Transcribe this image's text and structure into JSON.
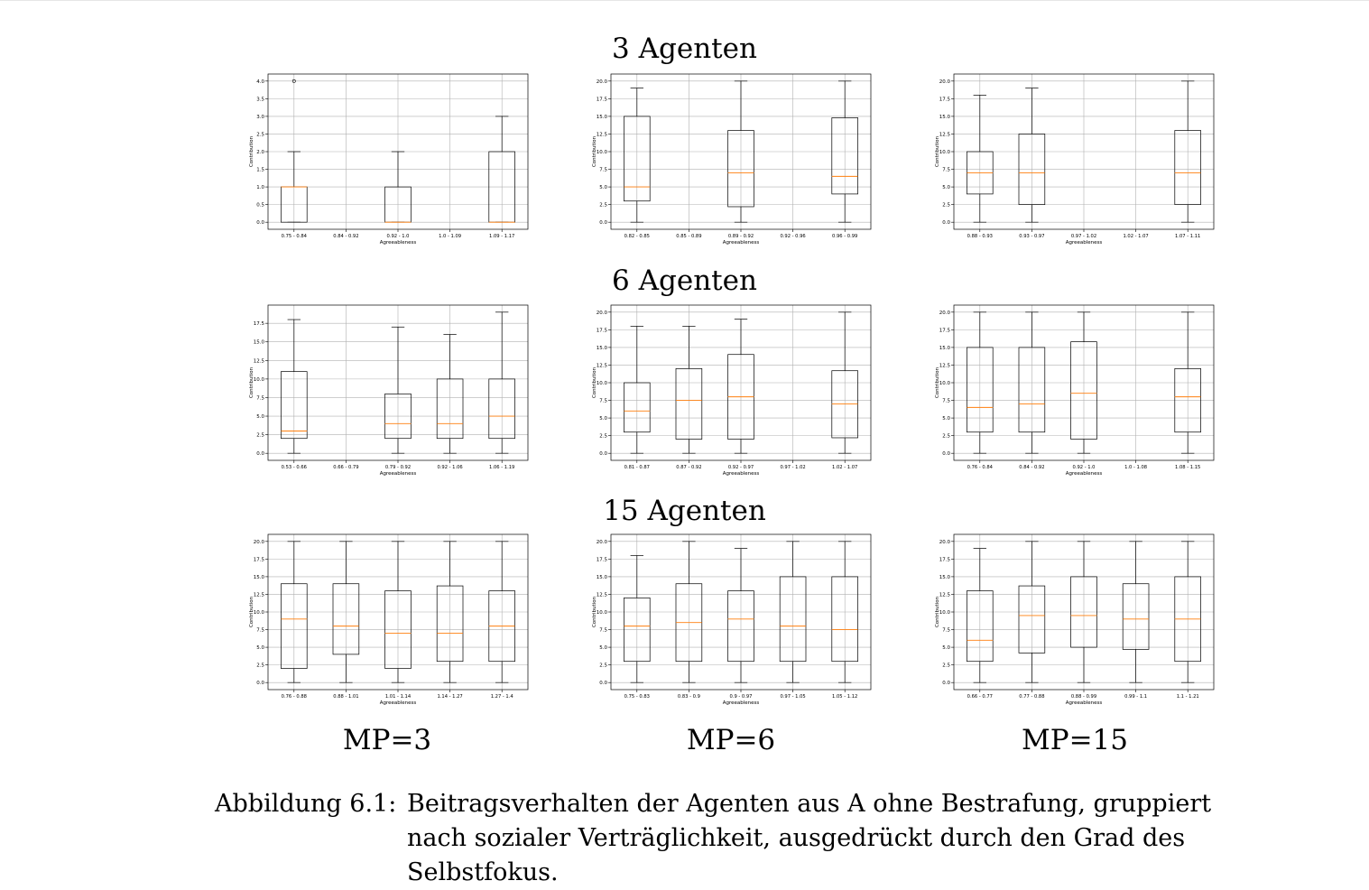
{
  "row_titles": [
    "3 Agenten",
    "6 Agenten",
    "15 Agenten"
  ],
  "column_labels": [
    "MP=3",
    "MP=6",
    "MP=15"
  ],
  "caption": {
    "label": "Abbildung 6.1:",
    "text": "Beitragsverhalten der Agenten aus A ohne Bestrafung, gruppiert nach sozialer Verträglichkeit, ausgedrückt durch den Grad des Selbstfokus."
  },
  "colors": {
    "median": "#ff7f0e",
    "box": "#000000",
    "grid": "#b0b0b0"
  },
  "chart_data": [
    {
      "type": "box",
      "row": 0,
      "col": 0,
      "xlabel": "Agreeableness",
      "ylabel": "Contribution",
      "ylim": [
        0,
        4
      ],
      "yticks": [
        "0.0",
        "0.5",
        "1.0",
        "1.5",
        "2.0",
        "2.5",
        "3.0",
        "3.5",
        "4.0"
      ],
      "grid": true,
      "categories": [
        "0.75 - 0.84",
        "0.84 - 0.92",
        "0.92 - 1.0",
        "1.0 - 1.09",
        "1.09 - 1.17"
      ],
      "boxes": [
        {
          "whislo": 0,
          "q1": 0,
          "med": 1,
          "q3": 1,
          "whishi": 2,
          "fliers": [
            4
          ]
        },
        null,
        {
          "whislo": 0,
          "q1": 0,
          "med": 0,
          "q3": 1,
          "whishi": 2,
          "fliers": []
        },
        null,
        {
          "whislo": 0,
          "q1": 0,
          "med": 0,
          "q3": 2,
          "whishi": 3,
          "fliers": []
        }
      ]
    },
    {
      "type": "box",
      "row": 0,
      "col": 1,
      "xlabel": "Agreeableness",
      "ylabel": "Contribution",
      "ylim": [
        0,
        20
      ],
      "yticks": [
        "0.0",
        "2.5",
        "5.0",
        "7.5",
        "10.0",
        "12.5",
        "15.0",
        "17.5",
        "20.0"
      ],
      "grid": true,
      "categories": [
        "0.82 - 0.85",
        "0.85 - 0.89",
        "0.89 - 0.92",
        "0.92 - 0.96",
        "0.96 - 0.99"
      ],
      "boxes": [
        {
          "whislo": 0,
          "q1": 3,
          "med": 5,
          "q3": 15,
          "whishi": 19,
          "fliers": []
        },
        null,
        {
          "whislo": 0,
          "q1": 2.2,
          "med": 7,
          "q3": 13,
          "whishi": 20,
          "fliers": []
        },
        null,
        {
          "whislo": 0,
          "q1": 4,
          "med": 6.5,
          "q3": 14.8,
          "whishi": 20,
          "fliers": []
        }
      ]
    },
    {
      "type": "box",
      "row": 0,
      "col": 2,
      "xlabel": "Agreeableness",
      "ylabel": "Contribution",
      "ylim": [
        0,
        20
      ],
      "yticks": [
        "0.0",
        "2.5",
        "5.0",
        "7.5",
        "10.0",
        "12.5",
        "15.0",
        "17.5",
        "20.0"
      ],
      "grid": true,
      "categories": [
        "0.88 - 0.93",
        "0.93 - 0.97",
        "0.97 - 1.02",
        "1.02 - 1.07",
        "1.07 - 1.11"
      ],
      "boxes": [
        {
          "whislo": 0,
          "q1": 4,
          "med": 7,
          "q3": 10,
          "whishi": 18,
          "fliers": []
        },
        {
          "whislo": 0,
          "q1": 2.5,
          "med": 7,
          "q3": 12.5,
          "whishi": 19,
          "fliers": []
        },
        null,
        null,
        {
          "whislo": 0,
          "q1": 2.5,
          "med": 7,
          "q3": 13,
          "whishi": 20,
          "fliers": []
        }
      ]
    },
    {
      "type": "box",
      "row": 1,
      "col": 0,
      "xlabel": "Agreeableness",
      "ylabel": "Contribution",
      "ylim": [
        0,
        19
      ],
      "yticks": [
        "0.0",
        "2.5",
        "5.0",
        "7.5",
        "10.0",
        "12.5",
        "15.0",
        "17.5"
      ],
      "grid": true,
      "categories": [
        "0.53 - 0.66",
        "0.66 - 0.79",
        "0.79 - 0.92",
        "0.92 - 1.06",
        "1.06 - 1.19"
      ],
      "boxes": [
        {
          "whislo": 0,
          "q1": 2,
          "med": 3,
          "q3": 11,
          "whishi": 18,
          "fliers": []
        },
        null,
        {
          "whislo": 0,
          "q1": 2,
          "med": 4,
          "q3": 8,
          "whishi": 17,
          "fliers": []
        },
        {
          "whislo": 0,
          "q1": 2,
          "med": 4,
          "q3": 10,
          "whishi": 16,
          "fliers": []
        },
        {
          "whislo": 0,
          "q1": 2,
          "med": 5,
          "q3": 10,
          "whishi": 19,
          "fliers": []
        }
      ]
    },
    {
      "type": "box",
      "row": 1,
      "col": 1,
      "xlabel": "Agreeableness",
      "ylabel": "Contribution",
      "ylim": [
        0,
        20
      ],
      "yticks": [
        "0.0",
        "2.5",
        "5.0",
        "7.5",
        "10.0",
        "12.5",
        "15.0",
        "17.5",
        "20.0"
      ],
      "grid": true,
      "categories": [
        "0.81 - 0.87",
        "0.87 - 0.92",
        "0.92 - 0.97",
        "0.97 - 1.02",
        "1.02 - 1.07"
      ],
      "boxes": [
        {
          "whislo": 0,
          "q1": 3,
          "med": 6,
          "q3": 10,
          "whishi": 18,
          "fliers": []
        },
        {
          "whislo": 0,
          "q1": 2,
          "med": 7.5,
          "q3": 12,
          "whishi": 18,
          "fliers": []
        },
        {
          "whislo": 0,
          "q1": 2,
          "med": 8,
          "q3": 14,
          "whishi": 19,
          "fliers": []
        },
        null,
        {
          "whislo": 0,
          "q1": 2.2,
          "med": 7,
          "q3": 11.7,
          "whishi": 20,
          "fliers": []
        }
      ]
    },
    {
      "type": "box",
      "row": 1,
      "col": 2,
      "xlabel": "Agreeableness",
      "ylabel": "Contribution",
      "ylim": [
        0,
        20
      ],
      "yticks": [
        "0.0",
        "2.5",
        "5.0",
        "7.5",
        "10.0",
        "12.5",
        "15.0",
        "17.5",
        "20.0"
      ],
      "grid": true,
      "categories": [
        "0.76 - 0.84",
        "0.84 - 0.92",
        "0.92 - 1.0",
        "1.0 - 1.08",
        "1.08 - 1.15"
      ],
      "boxes": [
        {
          "whislo": 0,
          "q1": 3,
          "med": 6.5,
          "q3": 15,
          "whishi": 20,
          "fliers": []
        },
        {
          "whislo": 0,
          "q1": 3,
          "med": 7,
          "q3": 15,
          "whishi": 20,
          "fliers": []
        },
        {
          "whislo": 0,
          "q1": 2,
          "med": 8.5,
          "q3": 15.8,
          "whishi": 20,
          "fliers": []
        },
        null,
        {
          "whislo": 0,
          "q1": 3,
          "med": 8,
          "q3": 12,
          "whishi": 20,
          "fliers": []
        }
      ]
    },
    {
      "type": "box",
      "row": 2,
      "col": 0,
      "xlabel": "Agreeableness",
      "ylabel": "Contribution",
      "ylim": [
        0,
        20
      ],
      "yticks": [
        "0.0",
        "2.5",
        "5.0",
        "7.5",
        "10.0",
        "12.5",
        "15.0",
        "17.5",
        "20.0"
      ],
      "grid": true,
      "categories": [
        "0.76 - 0.88",
        "0.88 - 1.01",
        "1.01 - 1.14",
        "1.14 - 1.27",
        "1.27 - 1.4"
      ],
      "boxes": [
        {
          "whislo": 0,
          "q1": 2,
          "med": 9,
          "q3": 14,
          "whishi": 20,
          "fliers": []
        },
        {
          "whislo": 0,
          "q1": 4,
          "med": 8,
          "q3": 14,
          "whishi": 20,
          "fliers": []
        },
        {
          "whislo": 0,
          "q1": 2,
          "med": 7,
          "q3": 13,
          "whishi": 20,
          "fliers": []
        },
        {
          "whislo": 0,
          "q1": 3,
          "med": 7,
          "q3": 13.7,
          "whishi": 20,
          "fliers": []
        },
        {
          "whislo": 0,
          "q1": 3,
          "med": 8,
          "q3": 13,
          "whishi": 20,
          "fliers": []
        }
      ]
    },
    {
      "type": "box",
      "row": 2,
      "col": 1,
      "xlabel": "Agreeableness",
      "ylabel": "Contribution",
      "ylim": [
        0,
        20
      ],
      "yticks": [
        "0.0",
        "2.5",
        "5.0",
        "7.5",
        "10.0",
        "12.5",
        "15.0",
        "17.5",
        "20.0"
      ],
      "grid": true,
      "categories": [
        "0.75 - 0.83",
        "0.83 - 0.9",
        "0.9 - 0.97",
        "0.97 - 1.05",
        "1.05 - 1.12"
      ],
      "boxes": [
        {
          "whislo": 0,
          "q1": 3,
          "med": 8,
          "q3": 12,
          "whishi": 18,
          "fliers": []
        },
        {
          "whislo": 0,
          "q1": 3,
          "med": 8.5,
          "q3": 14,
          "whishi": 20,
          "fliers": []
        },
        {
          "whislo": 0,
          "q1": 3,
          "med": 9,
          "q3": 13,
          "whishi": 19,
          "fliers": []
        },
        {
          "whislo": 0,
          "q1": 3,
          "med": 8,
          "q3": 15,
          "whishi": 20,
          "fliers": []
        },
        {
          "whislo": 0,
          "q1": 3,
          "med": 7.5,
          "q3": 15,
          "whishi": 20,
          "fliers": []
        }
      ]
    },
    {
      "type": "box",
      "row": 2,
      "col": 2,
      "xlabel": "Agreeableness",
      "ylabel": "Contribution",
      "ylim": [
        0,
        20
      ],
      "yticks": [
        "0.0",
        "2.5",
        "5.0",
        "7.5",
        "10.0",
        "12.5",
        "15.0",
        "17.5",
        "20.0"
      ],
      "grid": true,
      "categories": [
        "0.66 - 0.77",
        "0.77 - 0.88",
        "0.88 - 0.99",
        "0.99 - 1.1",
        "1.1 - 1.21"
      ],
      "boxes": [
        {
          "whislo": 0,
          "q1": 3,
          "med": 6,
          "q3": 13,
          "whishi": 19,
          "fliers": []
        },
        {
          "whislo": 0,
          "q1": 4.2,
          "med": 9.5,
          "q3": 13.7,
          "whishi": 20,
          "fliers": []
        },
        {
          "whislo": 0,
          "q1": 5,
          "med": 9.5,
          "q3": 15,
          "whishi": 20,
          "fliers": []
        },
        {
          "whislo": 0,
          "q1": 4.7,
          "med": 9,
          "q3": 14,
          "whishi": 20,
          "fliers": []
        },
        {
          "whislo": 0,
          "q1": 3,
          "med": 9,
          "q3": 15,
          "whishi": 20,
          "fliers": []
        }
      ]
    }
  ]
}
